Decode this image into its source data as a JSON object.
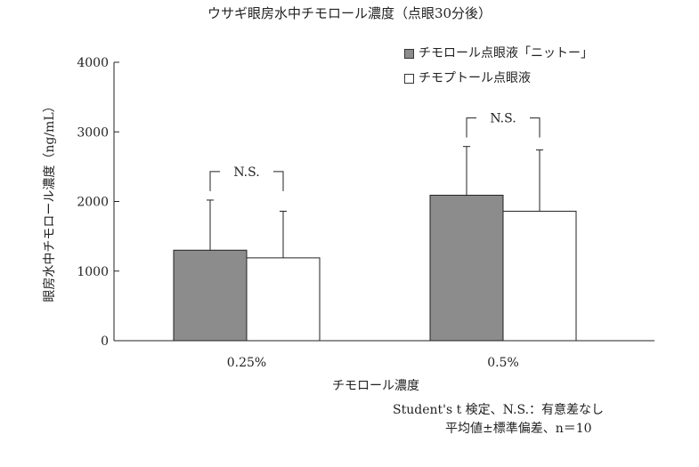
{
  "chart_data": {
    "type": "bar",
    "title": "ウサギ眼房水中チモロール濃度（点眼30分後）",
    "xlabel": "チモロール濃度",
    "ylabel": "眼房水中チモロール濃度（ng/mL）",
    "ylim": [
      0,
      4000
    ],
    "yticks": [
      "0",
      "1000",
      "2000",
      "3000",
      "4000"
    ],
    "categories": [
      "0.25%",
      "0.5%"
    ],
    "series": [
      {
        "name": "チモロール点眼液「ニットー」",
        "color": "#8c8c8c",
        "values": [
          1300,
          2090
        ],
        "errors": [
          720,
          700
        ]
      },
      {
        "name": "チモプトール点眼液",
        "color": "#ffffff",
        "values": [
          1190,
          1860
        ],
        "errors": [
          670,
          880
        ]
      }
    ],
    "significance": [
      "N.S.",
      "N.S."
    ],
    "legend_position": "top-right",
    "grid": false
  },
  "notes": {
    "line1": "Student's t 検定、N.S.：有意差なし",
    "line2": "平均値±標準偏差、n＝10"
  }
}
